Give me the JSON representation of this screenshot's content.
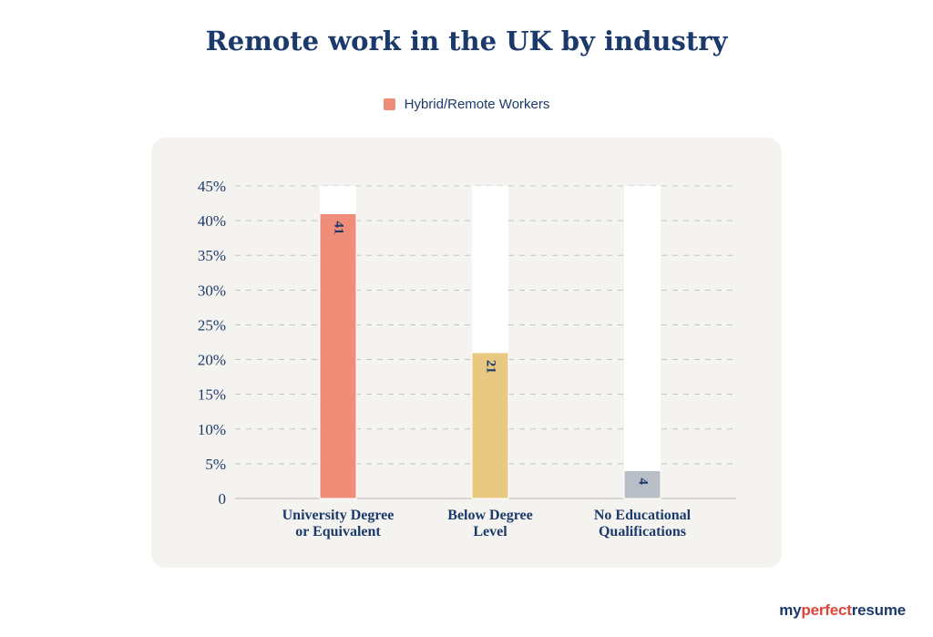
{
  "chart_data": {
    "type": "bar",
    "title": "Remote work in the UK by industry",
    "legend": [
      {
        "name": "Hybrid/Remote Workers",
        "color": "#f08d78"
      }
    ],
    "categories": [
      [
        "University Degree",
        "or Equivalent"
      ],
      [
        "Below Degree",
        "Level"
      ],
      [
        "No Educational",
        "Qualifications"
      ]
    ],
    "series": [
      {
        "name": "Hybrid/Remote Workers",
        "values": [
          41,
          21,
          4
        ],
        "colors": [
          "#f08d78",
          "#e9c882",
          "#b9bec6"
        ]
      }
    ],
    "value_labels": [
      "41",
      "21",
      "4"
    ],
    "yticks": [
      "0",
      "5%",
      "10%",
      "15%",
      "20%",
      "25%",
      "30%",
      "35%",
      "40%",
      "45%"
    ],
    "ylim": [
      0,
      45
    ],
    "grid": true
  },
  "logo": {
    "part1": "my",
    "part2": "perfect",
    "part3": "resume"
  }
}
